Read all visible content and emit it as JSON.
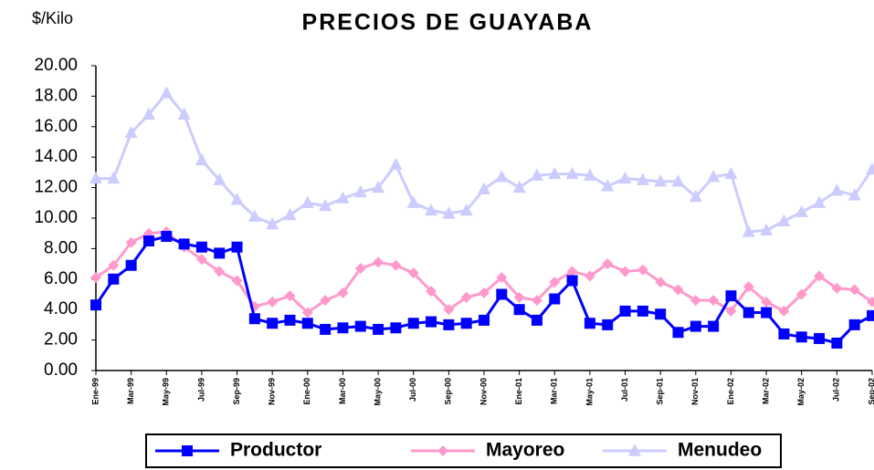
{
  "chart_data": {
    "type": "line",
    "title": "PRECIOS DE GUAYABA",
    "y_label": "$/Kilo",
    "categories": [
      "Ene-99",
      null,
      "Mar-99",
      null,
      "May-99",
      null,
      "Jul-99",
      null,
      "Sep-99",
      null,
      "Nov-99",
      null,
      "Ene-00",
      null,
      "Mar-00",
      null,
      "May-00",
      null,
      "Jul-00",
      null,
      "Sep-00",
      null,
      "Nov-00",
      null,
      "Ene-01",
      null,
      "Mar-01",
      null,
      "May-01",
      null,
      "Jul-01",
      null,
      "Sep-01",
      null,
      "Nov-01",
      null,
      "Ene-02",
      null,
      "Mar-02",
      null,
      "May-02",
      null,
      "Jul-02",
      null,
      "Sep-02"
    ],
    "series": [
      {
        "name": "Productor",
        "color": "#0000ff",
        "marker": "square",
        "values": [
          4.3,
          6.0,
          6.9,
          8.5,
          8.8,
          8.3,
          8.1,
          7.7,
          8.1,
          3.4,
          3.1,
          3.3,
          3.1,
          2.7,
          2.8,
          2.9,
          2.7,
          2.8,
          3.1,
          3.2,
          3.0,
          3.1,
          3.3,
          5.0,
          4.0,
          3.3,
          4.7,
          5.9,
          3.1,
          3.0,
          3.9,
          3.9,
          3.7,
          2.5,
          2.9,
          2.9,
          4.9,
          3.8,
          3.8,
          2.4,
          2.2,
          2.1,
          1.8,
          3.0,
          3.6
        ]
      },
      {
        "name": "Mayoreo",
        "color": "#ff99cc",
        "marker": "diamond",
        "values": [
          6.1,
          6.9,
          8.4,
          9.0,
          9.1,
          8.1,
          7.3,
          6.5,
          5.9,
          4.2,
          4.5,
          4.9,
          3.8,
          4.6,
          5.1,
          6.7,
          7.1,
          6.9,
          6.4,
          5.2,
          4.0,
          4.8,
          5.1,
          6.1,
          4.8,
          4.6,
          5.8,
          6.5,
          6.2,
          7.0,
          6.5,
          6.6,
          5.8,
          5.3,
          4.6,
          4.6,
          3.9,
          5.5,
          4.5,
          3.9,
          5.0,
          6.2,
          5.4,
          5.3,
          4.5
        ]
      },
      {
        "name": "Menudeo",
        "color": "#ccccff",
        "marker": "triangle",
        "values": [
          12.6,
          12.6,
          15.6,
          16.8,
          18.2,
          16.8,
          13.8,
          12.5,
          11.2,
          10.1,
          9.6,
          10.2,
          11.0,
          10.8,
          11.3,
          11.7,
          12.0,
          13.5,
          11.0,
          10.5,
          10.3,
          10.5,
          11.9,
          12.7,
          12.0,
          12.8,
          12.9,
          12.9,
          12.8,
          12.1,
          12.6,
          12.5,
          12.4,
          12.4,
          11.4,
          12.7,
          12.9,
          9.1,
          9.2,
          9.8,
          10.4,
          11.0,
          11.8,
          11.5,
          13.2
        ]
      }
    ],
    "ylim": [
      0,
      20
    ],
    "yticks": [
      {
        "value": 0,
        "label": "0.00"
      },
      {
        "value": 2,
        "label": "2.00"
      },
      {
        "value": 4,
        "label": "4.00"
      },
      {
        "value": 6,
        "label": "6.00"
      },
      {
        "value": 8,
        "label": "8.00"
      },
      {
        "value": 10,
        "label": "10.00"
      },
      {
        "value": 12,
        "label": "12.00"
      },
      {
        "value": 14,
        "label": "14.00"
      },
      {
        "value": 16,
        "label": "16.00"
      },
      {
        "value": 18,
        "label": "18.00"
      },
      {
        "value": 20,
        "label": "20.00"
      }
    ],
    "grid": false,
    "legend": "bottom"
  }
}
